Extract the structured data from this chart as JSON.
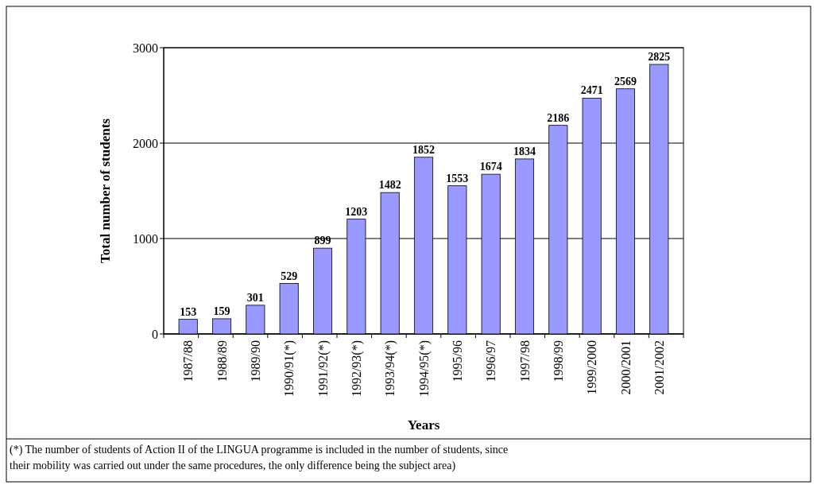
{
  "chart_data": {
    "type": "bar",
    "categories": [
      "1987/88",
      "1988/89",
      "1989/90",
      "1990/91(*)",
      "1991/92(*)",
      "1992/93(*)",
      "1993/94(*)",
      "1994/95(*)",
      "1995/96",
      "1996/97",
      "1997/98",
      "1998/99",
      "1999/2000",
      "2000/2001",
      "2001/2002"
    ],
    "values": [
      153,
      159,
      301,
      529,
      899,
      1203,
      1482,
      1852,
      1553,
      1674,
      1834,
      2186,
      2471,
      2569,
      2825
    ],
    "color": "#9999ff",
    "ylim": [
      0,
      3000
    ],
    "yticks": [
      0,
      1000,
      2000,
      3000
    ],
    "grid": "y",
    "data_labels": true,
    "ylabel": "Total number of students",
    "xlabel": "Years",
    "annotations": [
      "(*) The number of students of Action II of the LINGUA programme is included in the number of students, since their mobility was carried out under the same procedures, the only difference being the subject area)"
    ]
  }
}
